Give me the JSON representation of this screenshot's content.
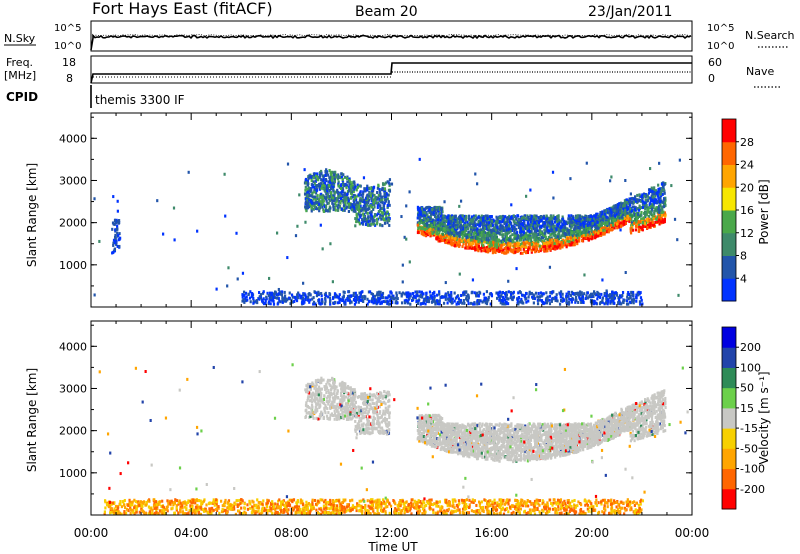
{
  "header": {
    "station": "Fort Hays East (fitACF)",
    "beam": "Beam 20",
    "date": "23/Jan/2011"
  },
  "noise_panel": {
    "left_label": "N.Sky",
    "right_label": "N.Search",
    "left_ticks": [
      "10^5",
      "10^0"
    ],
    "right_ticks": [
      "10^5",
      "10^0"
    ]
  },
  "freq_panel": {
    "left_label_1": "Freq.",
    "left_label_2": "[MHz]",
    "right_label": "Nave",
    "left_ticks": [
      "18",
      "8"
    ],
    "right_ticks": [
      "60",
      "0"
    ],
    "cpid_label": "CPID",
    "cpid_text": "themis 3300 IF"
  },
  "x_axis": {
    "label": "Time UT",
    "ticks": [
      "00:00",
      "04:00",
      "08:00",
      "12:00",
      "16:00",
      "20:00",
      "00:00"
    ]
  },
  "colors": {
    "power": [
      "#0033ff",
      "#2255aa",
      "#3e8a6a",
      "#4aa84a",
      "#f7e600",
      "#ffa500",
      "#ff6600",
      "#ff0000"
    ],
    "velocity": [
      "#ff0000",
      "#ff6600",
      "#ffa500",
      "#f7d000",
      "#c8c8c4",
      "#6cd04a",
      "#2e8b57",
      "#2244aa",
      "#0000e0"
    ]
  },
  "chart_data": [
    {
      "type": "heatmap",
      "name": "power",
      "ylabel": "Slant Range [km]",
      "ylim": [
        0,
        4600
      ],
      "xlim": [
        0,
        24
      ],
      "y_ticks": [
        "1000",
        "2000",
        "3000",
        "4000"
      ],
      "colorbar": {
        "label": "Power [dB]",
        "ticks": [
          "4",
          "8",
          "12",
          "16",
          "20",
          "24",
          "28"
        ]
      },
      "regions": [
        {
          "t_start": 0.8,
          "t_end": 1.1,
          "range_low": 1300,
          "range_high": 2100,
          "level": "blue"
        },
        {
          "t_start": 8.5,
          "t_end": 11.9,
          "range_low": 2000,
          "range_high": 3300,
          "level": "blue-green"
        },
        {
          "t_start": 13.0,
          "t_end": 22.9,
          "range_low": 1250,
          "range_high": 3000,
          "level": "blue top, green-orange-red bottom"
        },
        {
          "t_start": 6.0,
          "t_end": 22.0,
          "range_low": 100,
          "range_high": 400,
          "level": "blue"
        }
      ]
    },
    {
      "type": "heatmap",
      "name": "velocity",
      "ylabel": "Slant Range [km]",
      "ylim": [
        0,
        4600
      ],
      "xlim": [
        0,
        24
      ],
      "y_ticks": [
        "1000",
        "2000",
        "3000",
        "4000"
      ],
      "colorbar": {
        "label": "Velocity [m s⁻¹]",
        "ticks": [
          "200",
          "100",
          "50",
          "15",
          "-15",
          "-50",
          "-100",
          "-200"
        ]
      },
      "regions": [
        {
          "t_start": 8.5,
          "t_end": 11.9,
          "range_low": 2200,
          "range_high": 3300,
          "level": "grey (ground scatter)"
        },
        {
          "t_start": 13.0,
          "t_end": 22.9,
          "range_low": 1250,
          "range_high": 3000,
          "level": "grey (ground scatter)"
        },
        {
          "t_start": 0.5,
          "t_end": 22.0,
          "range_low": 50,
          "range_high": 400,
          "level": "orange"
        }
      ]
    }
  ]
}
